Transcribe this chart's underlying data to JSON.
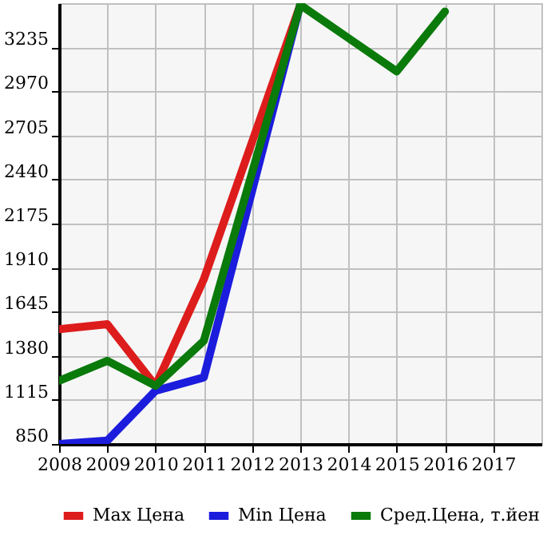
{
  "chart_data": {
    "type": "line",
    "xlim": [
      2008,
      2018
    ],
    "xticks": [
      2008,
      2009,
      2010,
      2011,
      2012,
      2013,
      2014,
      2015,
      2016,
      2017
    ],
    "ylim": [
      850,
      3500
    ],
    "yticks": [
      850,
      1115,
      1380,
      1645,
      1910,
      2175,
      2440,
      2705,
      2970,
      3235
    ],
    "grid": true,
    "legend": "bottom",
    "marker": "none",
    "line_style": "solid",
    "series": [
      {
        "name": "Max Цена",
        "color": "#dd1c1c",
        "x": [
          2008,
          2009,
          2010,
          2011,
          2013
        ],
        "values": [
          1540,
          1570,
          1200,
          1840,
          3490
        ]
      },
      {
        "name": "Min Цена",
        "color": "#1c1cdd",
        "x": [
          2008,
          2009,
          2010,
          2011,
          2013
        ],
        "values": [
          850,
          870,
          1170,
          1250,
          3490
        ]
      },
      {
        "name": "Сред.Цена, т.йен",
        "color": "#0a7a0a",
        "x": [
          2008,
          2009,
          2010,
          2011,
          2013,
          2014,
          2015,
          2016
        ],
        "values": [
          1230,
          1350,
          1200,
          1470,
          3490,
          3290,
          3090,
          3450
        ]
      }
    ]
  }
}
